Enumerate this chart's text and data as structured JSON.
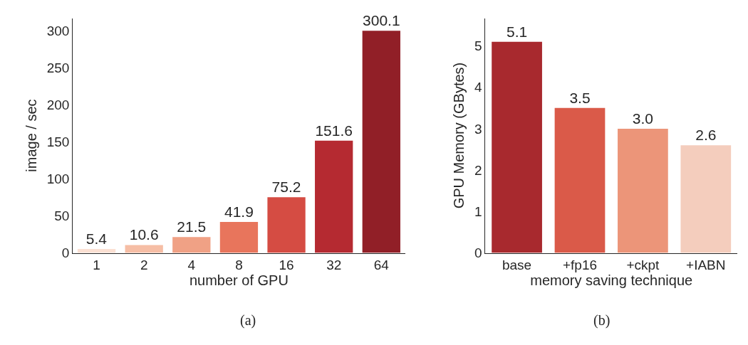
{
  "chart_data": [
    {
      "type": "bar",
      "categories": [
        "1",
        "2",
        "4",
        "8",
        "16",
        "32",
        "64"
      ],
      "values": [
        5.4,
        10.6,
        21.5,
        41.9,
        75.2,
        151.6,
        300.1
      ],
      "colors": [
        "#fbe0d3",
        "#f6bea5",
        "#f0a185",
        "#e8755c",
        "#d54c43",
        "#b52a31",
        "#911f27"
      ],
      "value_labels": [
        "5.4",
        "10.6",
        "21.5",
        "41.9",
        "75.2",
        "151.6",
        "300.1"
      ],
      "xlabel": "number of GPU",
      "ylabel": "image / sec",
      "ylim": [
        0,
        317
      ],
      "yticks": [
        0,
        50,
        100,
        150,
        200,
        250,
        300
      ],
      "annotations": [
        "(a)"
      ]
    },
    {
      "type": "bar",
      "categories": [
        "base",
        "+fp16",
        "+ckpt",
        "+IABN"
      ],
      "values": [
        5.1,
        3.5,
        3.0,
        2.6
      ],
      "colors": [
        "#a8292e",
        "#da5a49",
        "#ec9579",
        "#f4cdbd"
      ],
      "value_labels": [
        "5.1",
        "3.5",
        "3.0",
        "2.6"
      ],
      "xlabel": "memory saving technique",
      "ylabel": "GPU Memory (GBytes)",
      "ylim": [
        0,
        5.67
      ],
      "yticks": [
        0,
        1,
        2,
        3,
        4,
        5
      ],
      "annotations": [
        "(b)"
      ]
    }
  ]
}
